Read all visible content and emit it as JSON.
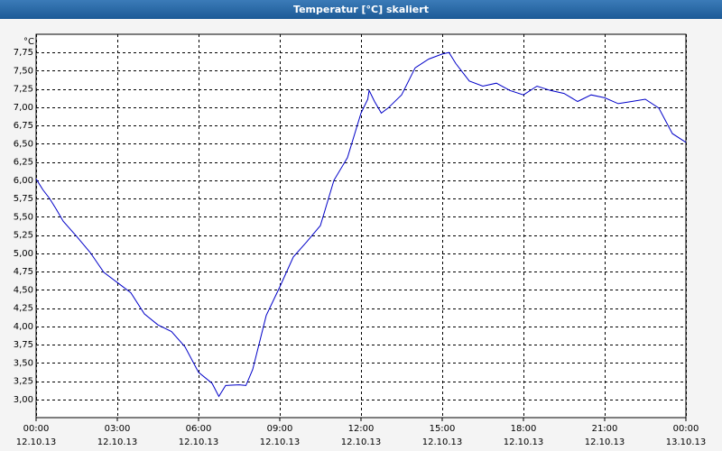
{
  "chart_data": {
    "type": "line",
    "title": "Temperatur [°C] skaliert",
    "y_unit": "°C",
    "x": [
      0,
      0.25,
      0.5,
      0.75,
      1,
      1.5,
      2,
      2.5,
      3,
      3.5,
      4,
      4.5,
      5,
      5.5,
      6,
      6.5,
      6.75,
      7,
      7.5,
      7.75,
      8,
      8.5,
      9,
      9.5,
      10,
      10.5,
      11,
      11.5,
      12,
      12.25,
      12.3,
      12.5,
      12.75,
      13,
      13.5,
      14,
      14.5,
      15,
      15.25,
      15.5,
      16,
      16.5,
      17,
      17.5,
      18,
      18.5,
      19,
      19.5,
      20,
      20.5,
      21,
      21.5,
      22,
      22.5,
      23,
      23.5,
      24
    ],
    "series": [
      {
        "name": "Temperatur",
        "color": "#0000c8",
        "values": [
          6.02,
          5.87,
          5.75,
          5.6,
          5.44,
          5.23,
          5.01,
          4.74,
          4.6,
          4.46,
          4.17,
          4.02,
          3.93,
          3.72,
          3.37,
          3.22,
          3.04,
          3.19,
          3.2,
          3.19,
          3.41,
          4.15,
          4.54,
          4.95,
          5.16,
          5.38,
          6.0,
          6.31,
          6.92,
          7.11,
          7.23,
          7.08,
          6.92,
          6.99,
          7.17,
          7.54,
          7.66,
          7.73,
          7.75,
          7.6,
          7.36,
          7.29,
          7.33,
          7.23,
          7.17,
          7.29,
          7.23,
          7.19,
          7.08,
          7.17,
          7.13,
          7.05,
          7.08,
          7.11,
          6.99,
          6.64,
          6.52
        ]
      }
    ],
    "xlim": [
      0,
      24
    ],
    "xticks": [
      {
        "value": 0,
        "label": "00:00",
        "date": "12.10.13"
      },
      {
        "value": 3,
        "label": "03:00",
        "date": "12.10.13"
      },
      {
        "value": 6,
        "label": "06:00",
        "date": "12.10.13"
      },
      {
        "value": 9,
        "label": "09:00",
        "date": "12.10.13"
      },
      {
        "value": 12,
        "label": "12:00",
        "date": "12.10.13"
      },
      {
        "value": 15,
        "label": "15:00",
        "date": "12.10.13"
      },
      {
        "value": 18,
        "label": "18:00",
        "date": "12.10.13"
      },
      {
        "value": 21,
        "label": "21:00",
        "date": "12.10.13"
      },
      {
        "value": 24,
        "label": "00:00",
        "date": "13.10.13"
      }
    ],
    "ylim": [
      2.75,
      8.0
    ],
    "yticks": [
      {
        "value": 3,
        "label": "3,00"
      },
      {
        "value": 3.25,
        "label": "3,25"
      },
      {
        "value": 3.5,
        "label": "3,50"
      },
      {
        "value": 3.75,
        "label": "3,75"
      },
      {
        "value": 4,
        "label": "4,00"
      },
      {
        "value": 4.25,
        "label": "4,25"
      },
      {
        "value": 4.5,
        "label": "4,50"
      },
      {
        "value": 4.75,
        "label": "4,75"
      },
      {
        "value": 5,
        "label": "5,00"
      },
      {
        "value": 5.25,
        "label": "5,25"
      },
      {
        "value": 5.5,
        "label": "5,50"
      },
      {
        "value": 5.75,
        "label": "5,75"
      },
      {
        "value": 6,
        "label": "6,00"
      },
      {
        "value": 6.25,
        "label": "6,25"
      },
      {
        "value": 6.5,
        "label": "6,50"
      },
      {
        "value": 6.75,
        "label": "6,75"
      },
      {
        "value": 7,
        "label": "7,00"
      },
      {
        "value": 7.25,
        "label": "7,25"
      },
      {
        "value": 7.5,
        "label": "7,50"
      },
      {
        "value": 7.75,
        "label": "7,75"
      }
    ],
    "grid": true
  }
}
